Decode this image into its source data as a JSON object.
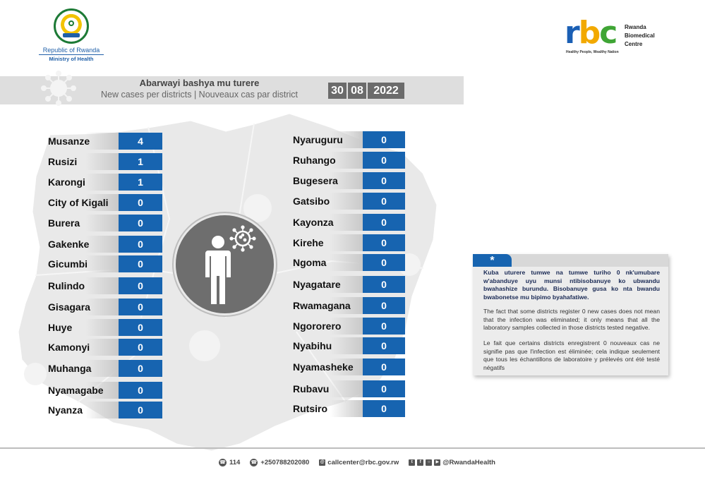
{
  "header": {
    "gov_line1": "Republic of Rwanda",
    "gov_line2": "Ministry of Health",
    "rbc_letters": [
      "r",
      "b",
      "c"
    ],
    "rbc_name": [
      "Rwanda",
      "Biomedical",
      "Centre"
    ],
    "rbc_tagline": "Healthy People, Wealthy Nation"
  },
  "title": {
    "kinyarwanda": "Abarwayi bashya mu turere",
    "english_french": "New cases per districts  |  Nouveaux cas par district",
    "date": {
      "day": "30",
      "month": "08",
      "year": "2022"
    }
  },
  "districts_left": [
    {
      "name": "Musanze",
      "value": "4"
    },
    {
      "name": "Rusizi",
      "value": "1"
    },
    {
      "name": "Karongi",
      "value": "1"
    },
    {
      "name": "City of Kigali",
      "value": "0"
    },
    {
      "name": "Burera",
      "value": "0"
    },
    {
      "name": "Gakenke",
      "value": "0"
    },
    {
      "name": "Gicumbi",
      "value": "0"
    },
    {
      "name": "Rulindo",
      "value": "0"
    },
    {
      "name": "Gisagara",
      "value": "0"
    },
    {
      "name": "Huye",
      "value": "0"
    },
    {
      "name": "Kamonyi",
      "value": "0"
    },
    {
      "name": "Muhanga",
      "value": "0"
    },
    {
      "name": "Nyamagabe",
      "value": "0"
    },
    {
      "name": "Nyanza",
      "value": "0"
    }
  ],
  "districts_right": [
    {
      "name": "Nyaruguru",
      "value": "0"
    },
    {
      "name": "Ruhango",
      "value": "0"
    },
    {
      "name": "Bugesera",
      "value": "0"
    },
    {
      "name": "Gatsibo",
      "value": "0"
    },
    {
      "name": "Kayonza",
      "value": "0"
    },
    {
      "name": "Kirehe",
      "value": "0"
    },
    {
      "name": "Ngoma",
      "value": "0"
    },
    {
      "name": "Nyagatare",
      "value": "0"
    },
    {
      "name": "Rwamagana",
      "value": "0"
    },
    {
      "name": "Ngororero",
      "value": "0"
    },
    {
      "name": "Nyabihu",
      "value": "0"
    },
    {
      "name": "Nyamasheke",
      "value": "0"
    },
    {
      "name": "Rubavu",
      "value": "0"
    },
    {
      "name": "Rutsiro",
      "value": "0"
    }
  ],
  "note": {
    "symbol": "*",
    "kinyarwanda": "Kuba uturere tumwe na tumwe turiho 0 nk'umubare w'abanduye  uyu munsi ntibisobanuye ko ubwandu bwahashize burundu. Bisobanuye gusa ko nta bwandu bwabonetse mu bipimo byahafatiwe.",
    "english": "The fact that some districts register 0 new cases does not mean that the infection was eliminated; it only means that all the laboratory samples collected in those districts tested negative.",
    "french": "Le fait que certains districts enregistrent 0 nouveaux cas ne signifie pas que l'infection est éliminée; cela indique seulement que tous les échantillons de laboratoire y prélevés ont été testé négatifs"
  },
  "footer": {
    "hotline": "114",
    "whatsapp": "+250788202080",
    "email": "callcenter@rbc.gov.rw",
    "social_handle": "@RwandaHealth"
  },
  "colors": {
    "value_box": "#1764b0",
    "date_box": "#6b6b6b",
    "title_band": "#dedede",
    "map_fill": "#e9e9e9"
  },
  "icons": [
    "coat-of-arms-icon",
    "virus-icon",
    "person-icon",
    "phone-icon",
    "whatsapp-icon",
    "email-icon",
    "twitter-icon",
    "facebook-icon",
    "instagram-icon",
    "youtube-icon"
  ]
}
